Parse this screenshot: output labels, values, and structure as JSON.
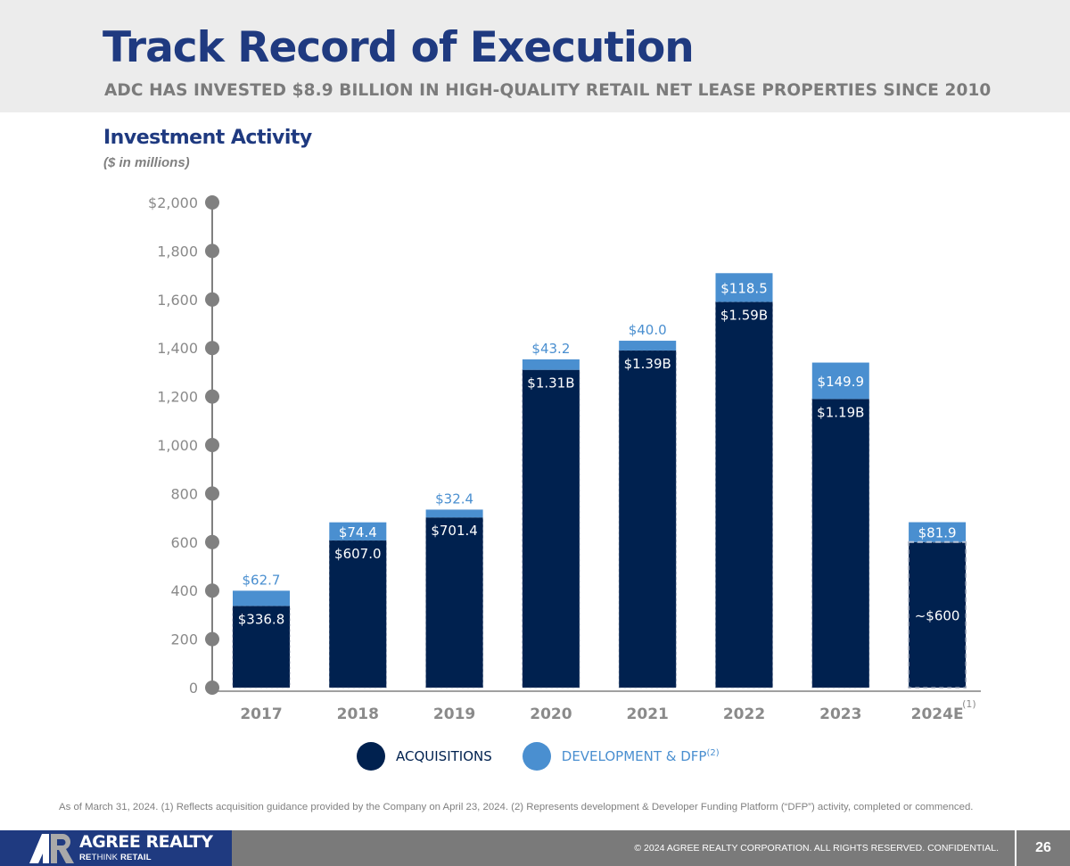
{
  "header": {
    "title": "Track Record of Execution",
    "subtitle": "ADC HAS INVESTED $8.9 BILLION IN HIGH-QUALITY RETAIL NET LEASE PROPERTIES SINCE 2010"
  },
  "section": {
    "title": "Investment Activity",
    "unit": "($ in millions)"
  },
  "colors": {
    "acquisitions": "#00214f",
    "development": "#4a8fd0",
    "title": "#1f3a80",
    "axis": "#808080",
    "footer_bg": "#7a7a7a",
    "brand_bg": "#1f3a80"
  },
  "chart_data": {
    "type": "bar",
    "stacked": true,
    "title": "Investment Activity",
    "subtitle": "($ in millions)",
    "xlabel": "",
    "ylabel": "",
    "categories": [
      "2017",
      "2018",
      "2019",
      "2020",
      "2021",
      "2022",
      "2023",
      "2024E"
    ],
    "category_superscripts": [
      "",
      "",
      "",
      "",
      "",
      "",
      "",
      "(1)"
    ],
    "ylim": [
      0,
      2000
    ],
    "yticks": [
      0,
      200,
      400,
      600,
      800,
      1000,
      1200,
      1400,
      1600,
      1800,
      2000
    ],
    "ytick_labels": [
      "0",
      "200",
      "400",
      "600",
      "800",
      "1,000",
      "1,200",
      "1,400",
      "1,600",
      "1,800",
      "$2,000"
    ],
    "grid": false,
    "legend_position": "bottom",
    "series": [
      {
        "name": "ACQUISITIONS",
        "values": [
          336.8,
          607.0,
          701.4,
          1310,
          1390,
          1590,
          1190,
          600
        ],
        "labels": [
          "$336.8",
          "$607.0",
          "$701.4",
          "$1.31B",
          "$1.39B",
          "$1.59B",
          "$1.19B",
          "~$600"
        ],
        "estimated": [
          false,
          false,
          false,
          false,
          false,
          false,
          false,
          true
        ]
      },
      {
        "name": "DEVELOPMENT & DFP",
        "name_superscript": "(2)",
        "values": [
          62.7,
          74.4,
          32.4,
          43.2,
          40.0,
          118.5,
          149.9,
          81.9
        ],
        "labels": [
          "$62.7",
          "$74.4",
          "$32.4",
          "$43.2",
          "$40.0",
          "$118.5",
          "$149.9",
          "$81.9"
        ]
      }
    ]
  },
  "legend": {
    "acquisitions": "ACQUISITIONS",
    "development": "DEVELOPMENT & DFP",
    "development_sup": "(2)"
  },
  "footnote": "As of March 31, 2024. (1) Reflects acquisition guidance provided by the Company on April 23, 2024. (2) Represents development & Developer Funding Platform (“DFP”) activity, completed or commenced.",
  "footer": {
    "brand_name": "AGREE REALTY",
    "brand_tag_light": "RETHINK",
    "brand_tag_bold": "RETAIL",
    "brand_tag_prefix": "RE",
    "copyright": "© 2024 AGREE REALTY CORPORATION. ALL RIGHTS RESERVED. CONFIDENTIAL.",
    "page_number": "26"
  }
}
